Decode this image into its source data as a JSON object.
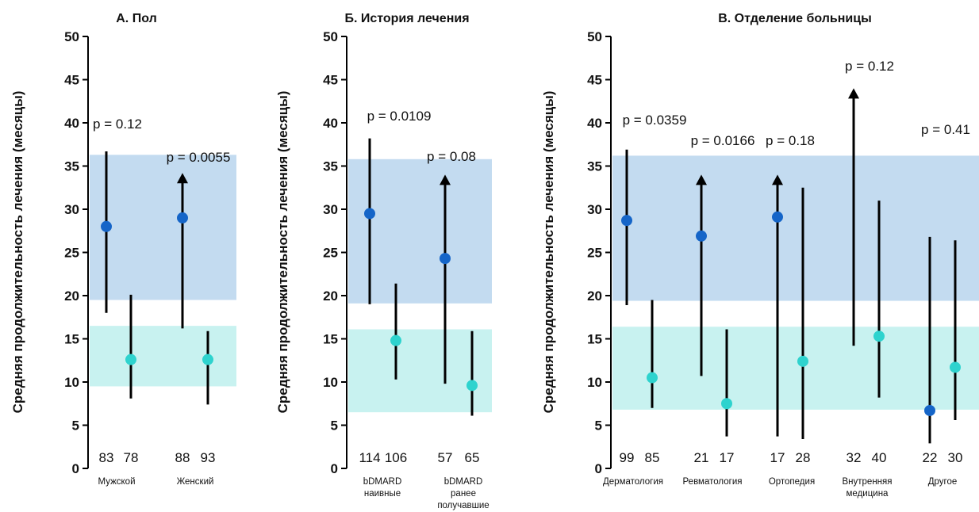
{
  "colors": {
    "blue_band": "#c3dbf0",
    "teal_band": "#c8f2f0",
    "blue_dot": "#1565c8",
    "teal_dot": "#2ed3ce",
    "line": "#000000"
  },
  "chart_data": [
    {
      "type": "scatter",
      "title": "А. Пол",
      "ylabel": "Средняя продолжительность лечения (месяцы)",
      "ylim": [
        0,
        50
      ],
      "yticks": [
        0,
        5,
        10,
        15,
        20,
        25,
        30,
        35,
        40,
        45,
        50
      ],
      "bands": [
        {
          "series": "blue",
          "from": 19.5,
          "to": 36.3
        },
        {
          "series": "teal",
          "from": 9.5,
          "to": 16.5
        }
      ],
      "categories": [
        "Мужской",
        "Женский"
      ],
      "groups": [
        {
          "p_value": "p = 0.12",
          "points": [
            {
              "series": "blue",
              "n": "83",
              "value": 28.0,
              "low": 18.0,
              "high": 36.7,
              "arrow": false
            },
            {
              "series": "teal",
              "n": "78",
              "value": 12.6,
              "low": 8.1,
              "high": 20.1,
              "arrow": false
            }
          ]
        },
        {
          "p_value": "p = 0.0055",
          "points": [
            {
              "series": "blue",
              "n": "88",
              "value": 29.0,
              "low": 16.2,
              "high": 34.2,
              "arrow": true
            },
            {
              "series": "teal",
              "n": "93",
              "value": 12.6,
              "low": 7.4,
              "high": 15.9,
              "arrow": false
            }
          ]
        }
      ]
    },
    {
      "type": "scatter",
      "title": "Б. История лечения",
      "ylabel": "Средняя продолжительность лечения (месяцы)",
      "ylim": [
        0,
        50
      ],
      "yticks": [
        0,
        5,
        10,
        15,
        20,
        25,
        30,
        35,
        40,
        45,
        50
      ],
      "bands": [
        {
          "series": "blue",
          "from": 19.1,
          "to": 35.8
        },
        {
          "series": "teal",
          "from": 6.5,
          "to": 16.1
        }
      ],
      "categories": [
        "bDMARD\nнаивные",
        "bDMARD\nранее\nполучавшие"
      ],
      "groups": [
        {
          "p_value": "p = 0.0109",
          "points": [
            {
              "series": "blue",
              "n": "114",
              "value": 29.5,
              "low": 19.0,
              "high": 38.2,
              "arrow": false
            },
            {
              "series": "teal",
              "n": "106",
              "value": 14.8,
              "low": 10.3,
              "high": 21.4,
              "arrow": false
            }
          ]
        },
        {
          "p_value": "p = 0.08",
          "points": [
            {
              "series": "blue",
              "n": "57",
              "value": 24.3,
              "low": 9.8,
              "high": 34.0,
              "arrow": true
            },
            {
              "series": "teal",
              "n": "65",
              "value": 9.6,
              "low": 6.1,
              "high": 15.9,
              "arrow": false
            }
          ]
        }
      ]
    },
    {
      "type": "scatter",
      "title": "В. Отделение больницы",
      "ylabel": "Средняя продолжительность лечения (месяцы)",
      "ylim": [
        0,
        50
      ],
      "yticks": [
        0,
        5,
        10,
        15,
        20,
        25,
        30,
        35,
        40,
        45,
        50
      ],
      "bands": [
        {
          "series": "blue",
          "from": 19.4,
          "to": 36.2
        },
        {
          "series": "teal",
          "from": 6.8,
          "to": 16.4
        }
      ],
      "categories": [
        "Дерматология",
        "Ревматология",
        "Ортопедия",
        "Внутренняя\nмедицина",
        "Другое"
      ],
      "groups": [
        {
          "p_value": "p = 0.0359",
          "points": [
            {
              "series": "blue",
              "n": "99",
              "value": 28.7,
              "low": 18.9,
              "high": 36.9,
              "arrow": false
            },
            {
              "series": "teal",
              "n": "85",
              "value": 10.5,
              "low": 7.0,
              "high": 19.5,
              "arrow": false
            }
          ]
        },
        {
          "p_value": "p = 0.0166",
          "points": [
            {
              "series": "blue",
              "n": "21",
              "value": 26.9,
              "low": 10.7,
              "high": 34.0,
              "arrow": true
            },
            {
              "series": "teal",
              "n": "17",
              "value": 7.5,
              "low": 3.7,
              "high": 16.1,
              "arrow": false
            }
          ]
        },
        {
          "p_value": "p = 0.18",
          "points": [
            {
              "series": "blue",
              "n": "17",
              "value": 29.1,
              "low": 3.7,
              "high": 34.0,
              "arrow": true
            },
            {
              "series": "teal",
              "n": "28",
              "value": 12.4,
              "low": 3.4,
              "high": 32.5,
              "arrow": false
            }
          ]
        },
        {
          "p_value": "p = 0.12",
          "points": [
            {
              "series": "blue",
              "n": "32",
              "value": null,
              "low": 14.2,
              "high": 44.0,
              "arrow": true
            },
            {
              "series": "teal",
              "n": "40",
              "value": 15.3,
              "low": 8.2,
              "high": 31.0,
              "arrow": false
            }
          ]
        },
        {
          "p_value": "p = 0.41",
          "points": [
            {
              "series": "blue",
              "n": "22",
              "value": 6.7,
              "low": 2.9,
              "high": 26.8,
              "arrow": false
            },
            {
              "series": "teal",
              "n": "30",
              "value": 11.7,
              "low": 5.6,
              "high": 26.4,
              "arrow": false
            }
          ]
        }
      ]
    }
  ]
}
